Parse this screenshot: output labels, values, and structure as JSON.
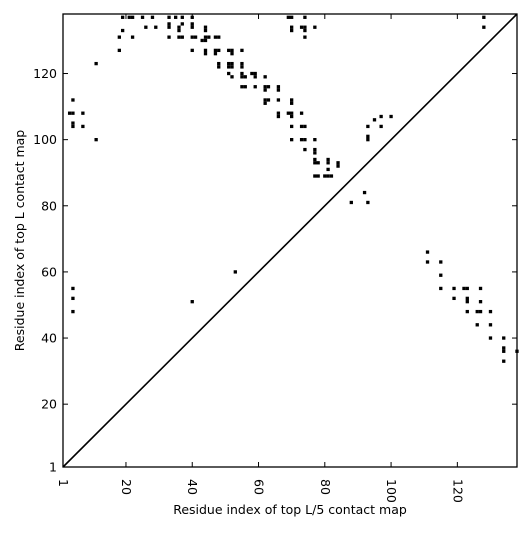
{
  "chart_data": {
    "type": "scatter",
    "xlabel": "Residue index of top L/5 contact map",
    "ylabel": "Residue index of top L contact map",
    "xlim": [
      1,
      138
    ],
    "ylim": [
      1,
      138
    ],
    "x_ticks": [
      1,
      20,
      40,
      60,
      80,
      100,
      120
    ],
    "y_ticks": [
      1,
      20,
      40,
      60,
      80,
      100,
      120
    ],
    "x_tick_labels": [
      "1",
      "20",
      "40",
      "60",
      "80",
      "100",
      "120"
    ],
    "y_tick_labels": [
      "1",
      "20",
      "40",
      "60",
      "80",
      "100",
      "120"
    ],
    "x_tick_rotation": 90,
    "grid": false,
    "diagonal": [
      [
        1,
        1
      ],
      [
        138,
        138
      ]
    ],
    "mark_style": "small black squares, one per contact cell",
    "marker_color": "#000000",
    "series": [
      {
        "points": [
          [
            19,
            137
          ],
          [
            21,
            137
          ],
          [
            22,
            137
          ],
          [
            25,
            137
          ],
          [
            28,
            137
          ],
          [
            33,
            137
          ],
          [
            35,
            137
          ],
          [
            37,
            137
          ],
          [
            40,
            137
          ],
          [
            69,
            137
          ],
          [
            70,
            137
          ],
          [
            74,
            137
          ],
          [
            128,
            137
          ],
          [
            33,
            135
          ],
          [
            37,
            135
          ],
          [
            40,
            135
          ],
          [
            26,
            134
          ],
          [
            29,
            134
          ],
          [
            33,
            134
          ],
          [
            36,
            134
          ],
          [
            40,
            134
          ],
          [
            44,
            134
          ],
          [
            70,
            134
          ],
          [
            73,
            134
          ],
          [
            74,
            134
          ],
          [
            77,
            134
          ],
          [
            128,
            134
          ],
          [
            19,
            133
          ],
          [
            36,
            133
          ],
          [
            44,
            133
          ],
          [
            70,
            133
          ],
          [
            74,
            133
          ],
          [
            18,
            131
          ],
          [
            22,
            131
          ],
          [
            33,
            131
          ],
          [
            36,
            131
          ],
          [
            37,
            131
          ],
          [
            40,
            131
          ],
          [
            41,
            131
          ],
          [
            44,
            131
          ],
          [
            45,
            131
          ],
          [
            47,
            131
          ],
          [
            48,
            131
          ],
          [
            74,
            131
          ],
          [
            43,
            130
          ],
          [
            44,
            130
          ],
          [
            18,
            127
          ],
          [
            40,
            127
          ],
          [
            44,
            127
          ],
          [
            47,
            127
          ],
          [
            48,
            127
          ],
          [
            51,
            127
          ],
          [
            52,
            127
          ],
          [
            55,
            127
          ],
          [
            44,
            126
          ],
          [
            47,
            126
          ],
          [
            52,
            126
          ],
          [
            11,
            123
          ],
          [
            48,
            123
          ],
          [
            51,
            123
          ],
          [
            52,
            123
          ],
          [
            55,
            123
          ],
          [
            48,
            122
          ],
          [
            51,
            122
          ],
          [
            52,
            122
          ],
          [
            55,
            122
          ],
          [
            51,
            120
          ],
          [
            55,
            120
          ],
          [
            58,
            120
          ],
          [
            59,
            120
          ],
          [
            52,
            119
          ],
          [
            55,
            119
          ],
          [
            56,
            119
          ],
          [
            59,
            119
          ],
          [
            62,
            119
          ],
          [
            55,
            116
          ],
          [
            56,
            116
          ],
          [
            59,
            116
          ],
          [
            62,
            116
          ],
          [
            63,
            116
          ],
          [
            66,
            116
          ],
          [
            62,
            115
          ],
          [
            66,
            115
          ],
          [
            4,
            112
          ],
          [
            62,
            112
          ],
          [
            63,
            112
          ],
          [
            66,
            112
          ],
          [
            70,
            112
          ],
          [
            62,
            111
          ],
          [
            70,
            111
          ],
          [
            3,
            108
          ],
          [
            4,
            108
          ],
          [
            7,
            108
          ],
          [
            66,
            108
          ],
          [
            69,
            108
          ],
          [
            70,
            108
          ],
          [
            73,
            108
          ],
          [
            66,
            107
          ],
          [
            70,
            107
          ],
          [
            97,
            107
          ],
          [
            100,
            107
          ],
          [
            95,
            106
          ],
          [
            4,
            105
          ],
          [
            4,
            104
          ],
          [
            7,
            104
          ],
          [
            70,
            104
          ],
          [
            73,
            104
          ],
          [
            74,
            104
          ],
          [
            93,
            104
          ],
          [
            97,
            104
          ],
          [
            93,
            101
          ],
          [
            11,
            100
          ],
          [
            70,
            100
          ],
          [
            73,
            100
          ],
          [
            74,
            100
          ],
          [
            77,
            100
          ],
          [
            93,
            100
          ],
          [
            74,
            97
          ],
          [
            77,
            97
          ],
          [
            77,
            96
          ],
          [
            77,
            94
          ],
          [
            81,
            94
          ],
          [
            77,
            93
          ],
          [
            78,
            93
          ],
          [
            81,
            93
          ],
          [
            84,
            93
          ],
          [
            84,
            92
          ],
          [
            81,
            91
          ],
          [
            77,
            89
          ],
          [
            78,
            89
          ],
          [
            80,
            89
          ],
          [
            81,
            89
          ],
          [
            82,
            89
          ],
          [
            88,
            81
          ],
          [
            93,
            81
          ],
          [
            92,
            84
          ],
          [
            111,
            66
          ],
          [
            111,
            63
          ],
          [
            115,
            63
          ],
          [
            53,
            60
          ],
          [
            115,
            59
          ],
          [
            4,
            55
          ],
          [
            115,
            55
          ],
          [
            119,
            55
          ],
          [
            122,
            55
          ],
          [
            123,
            55
          ],
          [
            127,
            55
          ],
          [
            4,
            52
          ],
          [
            40,
            51
          ],
          [
            119,
            52
          ],
          [
            123,
            52
          ],
          [
            123,
            51
          ],
          [
            127,
            51
          ],
          [
            4,
            48
          ],
          [
            123,
            48
          ],
          [
            126,
            48
          ],
          [
            127,
            48
          ],
          [
            130,
            48
          ],
          [
            130,
            44
          ],
          [
            126,
            44
          ],
          [
            130,
            40
          ],
          [
            134,
            40
          ],
          [
            134,
            37
          ],
          [
            134,
            36
          ],
          [
            138,
            36
          ],
          [
            134,
            33
          ]
        ]
      }
    ]
  }
}
